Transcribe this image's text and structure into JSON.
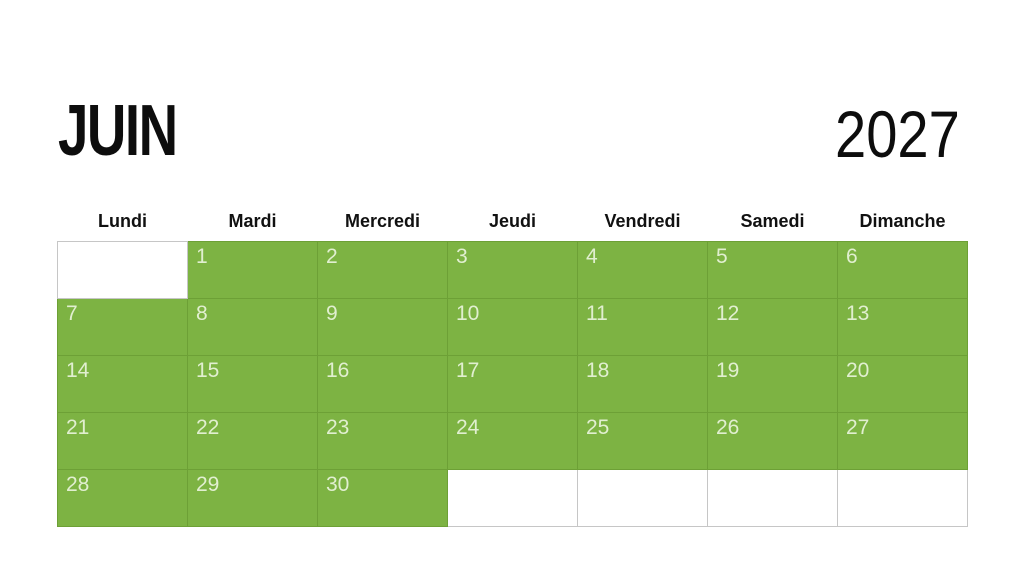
{
  "calendar": {
    "month": "JUIN",
    "year": "2027",
    "weekdays": [
      "Lundi",
      "Mardi",
      "Mercredi",
      "Jeudi",
      "Vendredi",
      "Samedi",
      "Dimanche"
    ],
    "weeks": [
      [
        "",
        "1",
        "2",
        "3",
        "4",
        "5",
        "6"
      ],
      [
        "7",
        "8",
        "9",
        "10",
        "11",
        "12",
        "13"
      ],
      [
        "14",
        "15",
        "16",
        "17",
        "18",
        "19",
        "20"
      ],
      [
        "21",
        "22",
        "23",
        "24",
        "25",
        "26",
        "27"
      ],
      [
        "28",
        "29",
        "30",
        "",
        "",
        "",
        ""
      ]
    ]
  },
  "colors": {
    "page_bg": "#ffffff",
    "title_color": "#0d0d0d",
    "header_text": "#111111",
    "day_cell_bg": "#7db343",
    "day_cell_border": "#6da036",
    "empty_cell_bg": "#ffffff",
    "empty_cell_border": "#c6c6c6",
    "day_number": "#e1efd0"
  }
}
